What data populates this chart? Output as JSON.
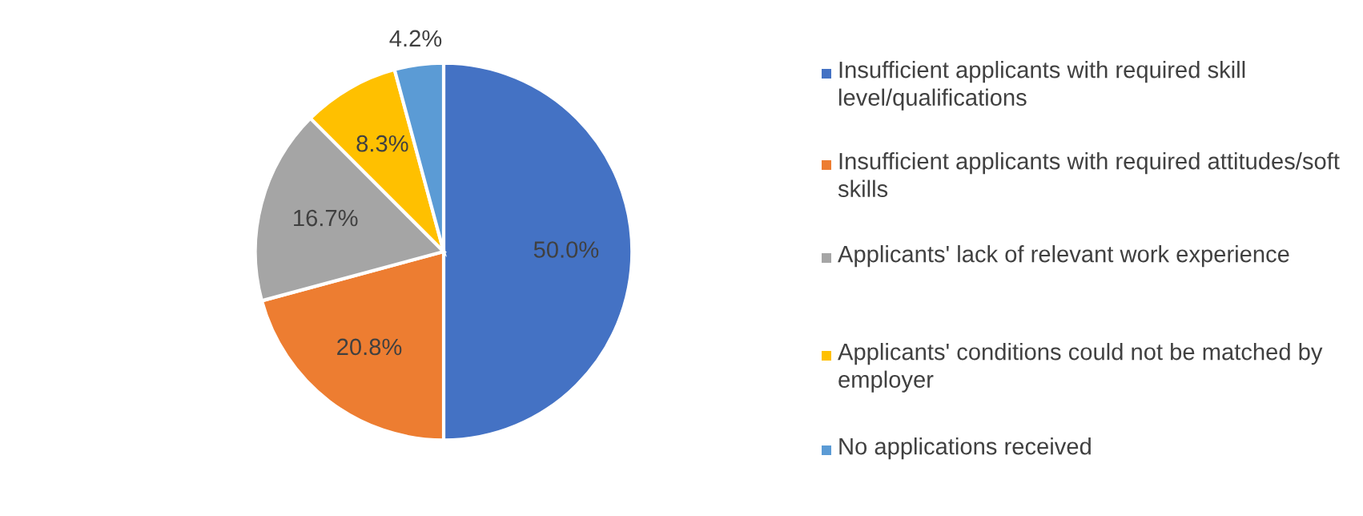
{
  "chart_data": {
    "type": "pie",
    "categories": [
      "Insufficient applicants with required skill level/qualifications",
      "Insufficient applicants with required attitudes/soft skills",
      "Applicants' lack of relevant work experience",
      "Applicants' conditions could not be matched by employer",
      "No applications received"
    ],
    "values": [
      50.0,
      20.8,
      16.7,
      8.3,
      4.2
    ],
    "colors": [
      "#4472c4",
      "#ed7d31",
      "#a5a5a5",
      "#ffc000",
      "#5b9bd5"
    ],
    "value_labels": [
      "50.0%",
      "20.8%",
      "16.7%",
      "8.3%",
      "4.2%"
    ],
    "legend": "right"
  }
}
